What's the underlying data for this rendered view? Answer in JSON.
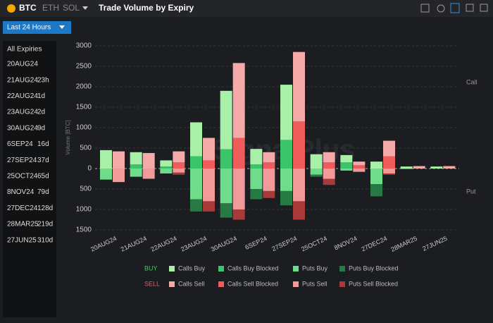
{
  "header": {
    "coins": [
      "BTC",
      "ETH",
      "SOL"
    ],
    "title": "Trade Volume by Expiry"
  },
  "filter": "Last 24 Hours",
  "sidebar": {
    "all": "All Expiries",
    "items": [
      {
        "label": "20AUG24",
        "ttl": ""
      },
      {
        "label": "21AUG24",
        "ttl": "23h"
      },
      {
        "label": "22AUG24",
        "ttl": "1d"
      },
      {
        "label": "23AUG24",
        "ttl": "2d"
      },
      {
        "label": "30AUG24",
        "ttl": "9d"
      },
      {
        "label": "6SEP24",
        "ttl": "16d"
      },
      {
        "label": "27SEP24",
        "ttl": "37d"
      },
      {
        "label": "25OCT24",
        "ttl": "65d"
      },
      {
        "label": "8NOV24",
        "ttl": "79d"
      },
      {
        "label": "27DEC24",
        "ttl": "128d"
      },
      {
        "label": "28MAR25",
        "ttl": "219d"
      },
      {
        "label": "27JUN25",
        "ttl": "310d"
      }
    ]
  },
  "chart_data": {
    "type": "stacked-bar",
    "y_label": "Volume [BTC]",
    "side_labels": {
      "top": "Call",
      "bottom": "Put"
    },
    "categories": [
      "20AUG24",
      "21AUG24",
      "22AUG24",
      "23AUG24",
      "30AUG24",
      "6SEP24",
      "27SEP24",
      "25OCT24",
      "8NOV24",
      "27DEC24",
      "28MAR25",
      "27JUN25"
    ],
    "stacks": [
      "BUY",
      "SELL"
    ],
    "series": [
      {
        "name": "Calls Buy",
        "stack": "BUY",
        "color": "#a8f0a8",
        "values": [
          450,
          300,
          150,
          830,
          1430,
          380,
          1350,
          350,
          180,
          170,
          50,
          50
        ]
      },
      {
        "name": "Calls Buy Blocked",
        "stack": "BUY",
        "color": "#3cc46a",
        "values": [
          0,
          100,
          50,
          300,
          470,
          100,
          700,
          0,
          150,
          0,
          0,
          0
        ]
      },
      {
        "name": "Puts Buy",
        "stack": "BUY",
        "color": "#6fdc8c",
        "values": [
          -270,
          -200,
          -120,
          -750,
          -850,
          -500,
          -550,
          -150,
          -50,
          -380,
          -10,
          0
        ]
      },
      {
        "name": "Puts Buy Blocked",
        "stack": "BUY",
        "color": "#287a44",
        "values": [
          0,
          0,
          0,
          -300,
          -350,
          -250,
          -350,
          -50,
          0,
          -300,
          0,
          0
        ]
      },
      {
        "name": "Calls Sell",
        "stack": "SELL",
        "color": "#f6a9a9",
        "values": [
          420,
          380,
          270,
          550,
          1830,
          250,
          1700,
          250,
          90,
          380,
          60,
          60
        ]
      },
      {
        "name": "Calls Sell Blocked",
        "stack": "SELL",
        "color": "#f05c5c",
        "values": [
          0,
          0,
          150,
          200,
          750,
          150,
          1150,
          150,
          80,
          300,
          0,
          0
        ]
      },
      {
        "name": "Puts Sell",
        "stack": "SELL",
        "color": "#f29a9a",
        "values": [
          -330,
          -250,
          -100,
          -800,
          -1000,
          -550,
          -800,
          -250,
          -80,
          -120,
          0,
          0
        ]
      },
      {
        "name": "Puts Sell Blocked",
        "stack": "SELL",
        "color": "#a83a3a",
        "values": [
          0,
          0,
          -50,
          -250,
          -250,
          -170,
          -450,
          -150,
          0,
          -30,
          0,
          0
        ]
      }
    ],
    "ylim": [
      -1500,
      3000
    ],
    "yticks": [
      {
        "value": -1500,
        "label": "1500"
      },
      {
        "value": -1000,
        "label": "1000"
      },
      {
        "value": -500,
        "label": "500"
      },
      0,
      500,
      1000,
      1500,
      2000,
      2500,
      3000
    ],
    "grid": true
  }
}
